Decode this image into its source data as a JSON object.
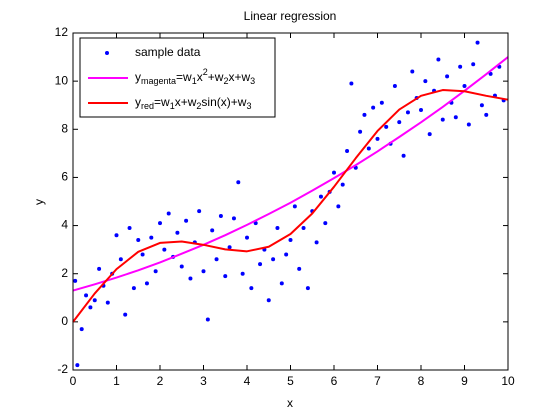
{
  "chart_data": {
    "type": "scatter",
    "title": "Linear regression",
    "xlabel": "x",
    "ylabel": "y",
    "xlim": [
      0,
      10
    ],
    "ylim": [
      -2,
      12
    ],
    "xticks": [
      0,
      1,
      2,
      3,
      4,
      5,
      6,
      7,
      8,
      9,
      10
    ],
    "yticks": [
      -2,
      0,
      2,
      4,
      6,
      8,
      10,
      12
    ],
    "grid": false,
    "legend": "top-left",
    "series": [
      {
        "name": "sample data",
        "color": "#0000ff",
        "style": "markers",
        "x": [
          0.05,
          0.1,
          0.2,
          0.3,
          0.4,
          0.5,
          0.6,
          0.7,
          0.8,
          0.9,
          1.0,
          1.1,
          1.2,
          1.3,
          1.4,
          1.5,
          1.6,
          1.7,
          1.8,
          1.9,
          2.0,
          2.1,
          2.2,
          2.3,
          2.4,
          2.5,
          2.6,
          2.7,
          2.8,
          2.9,
          3.0,
          3.1,
          3.2,
          3.3,
          3.4,
          3.5,
          3.6,
          3.7,
          3.8,
          3.9,
          4.0,
          4.1,
          4.2,
          4.3,
          4.4,
          4.5,
          4.6,
          4.7,
          4.8,
          4.9,
          5.0,
          5.1,
          5.2,
          5.3,
          5.4,
          5.5,
          5.6,
          5.7,
          5.8,
          5.9,
          6.0,
          6.1,
          6.2,
          6.3,
          6.4,
          6.5,
          6.6,
          6.7,
          6.8,
          6.9,
          7.0,
          7.1,
          7.2,
          7.3,
          7.4,
          7.5,
          7.6,
          7.7,
          7.8,
          7.9,
          8.0,
          8.1,
          8.2,
          8.3,
          8.4,
          8.5,
          8.6,
          8.7,
          8.8,
          8.9,
          9.0,
          9.1,
          9.2,
          9.3,
          9.4,
          9.5,
          9.6,
          9.7,
          9.8,
          9.9
        ],
        "values": [
          1.7,
          -1.8,
          -0.3,
          1.1,
          0.6,
          0.9,
          2.2,
          1.5,
          0.8,
          2.0,
          3.6,
          2.6,
          0.3,
          3.9,
          1.4,
          3.4,
          2.8,
          1.6,
          3.5,
          2.1,
          4.1,
          3.0,
          4.5,
          2.7,
          3.7,
          2.3,
          4.2,
          1.8,
          3.3,
          4.6,
          2.1,
          0.1,
          3.8,
          2.6,
          4.4,
          1.9,
          3.1,
          4.3,
          5.8,
          2.0,
          3.5,
          1.4,
          4.1,
          2.4,
          3.0,
          0.9,
          2.6,
          3.9,
          1.6,
          2.8,
          3.4,
          4.8,
          2.2,
          3.9,
          1.4,
          4.6,
          3.3,
          5.2,
          4.1,
          5.4,
          6.2,
          4.8,
          5.7,
          7.1,
          9.9,
          6.4,
          7.9,
          8.6,
          7.2,
          8.9,
          7.6,
          9.1,
          8.1,
          7.4,
          9.8,
          8.3,
          6.9,
          8.7,
          10.4,
          9.3,
          8.8,
          10.0,
          7.8,
          9.6,
          10.9,
          8.4,
          10.2,
          9.1,
          8.5,
          10.6,
          9.8,
          8.2,
          10.7,
          11.6,
          9.0,
          8.6,
          10.3,
          9.4,
          10.6,
          9.2
        ]
      },
      {
        "name": "y_{magenta}=w_1x^2+w_2x+w_3",
        "color": "#ff00ff",
        "style": "line",
        "x": [
          0,
          0.5,
          1,
          1.5,
          2,
          2.5,
          3,
          3.5,
          4,
          4.5,
          5,
          5.5,
          6,
          6.5,
          7,
          7.5,
          8,
          8.5,
          9,
          9.5,
          10
        ],
        "values": [
          1.3,
          1.56,
          1.84,
          2.14,
          2.47,
          2.83,
          3.2,
          3.6,
          4.03,
          4.48,
          4.95,
          5.45,
          5.97,
          6.51,
          7.08,
          7.68,
          8.29,
          8.93,
          9.6,
          10.29,
          11.0
        ]
      },
      {
        "name": "y_{red}=w_1x+w_2sin(x)+w_3",
        "color": "#ff0000",
        "style": "line",
        "x": [
          0,
          0.5,
          1,
          1.5,
          2,
          2.5,
          3,
          3.5,
          4,
          4.5,
          5,
          5.5,
          6,
          6.5,
          7,
          7.5,
          8,
          8.5,
          9,
          9.5,
          10
        ],
        "values": [
          0,
          1.18,
          2.19,
          2.91,
          3.28,
          3.34,
          3.2,
          3.01,
          2.93,
          3.12,
          3.65,
          4.5,
          5.61,
          6.8,
          7.93,
          8.82,
          9.39,
          9.63,
          9.58,
          9.39,
          9.23
        ]
      }
    ]
  }
}
